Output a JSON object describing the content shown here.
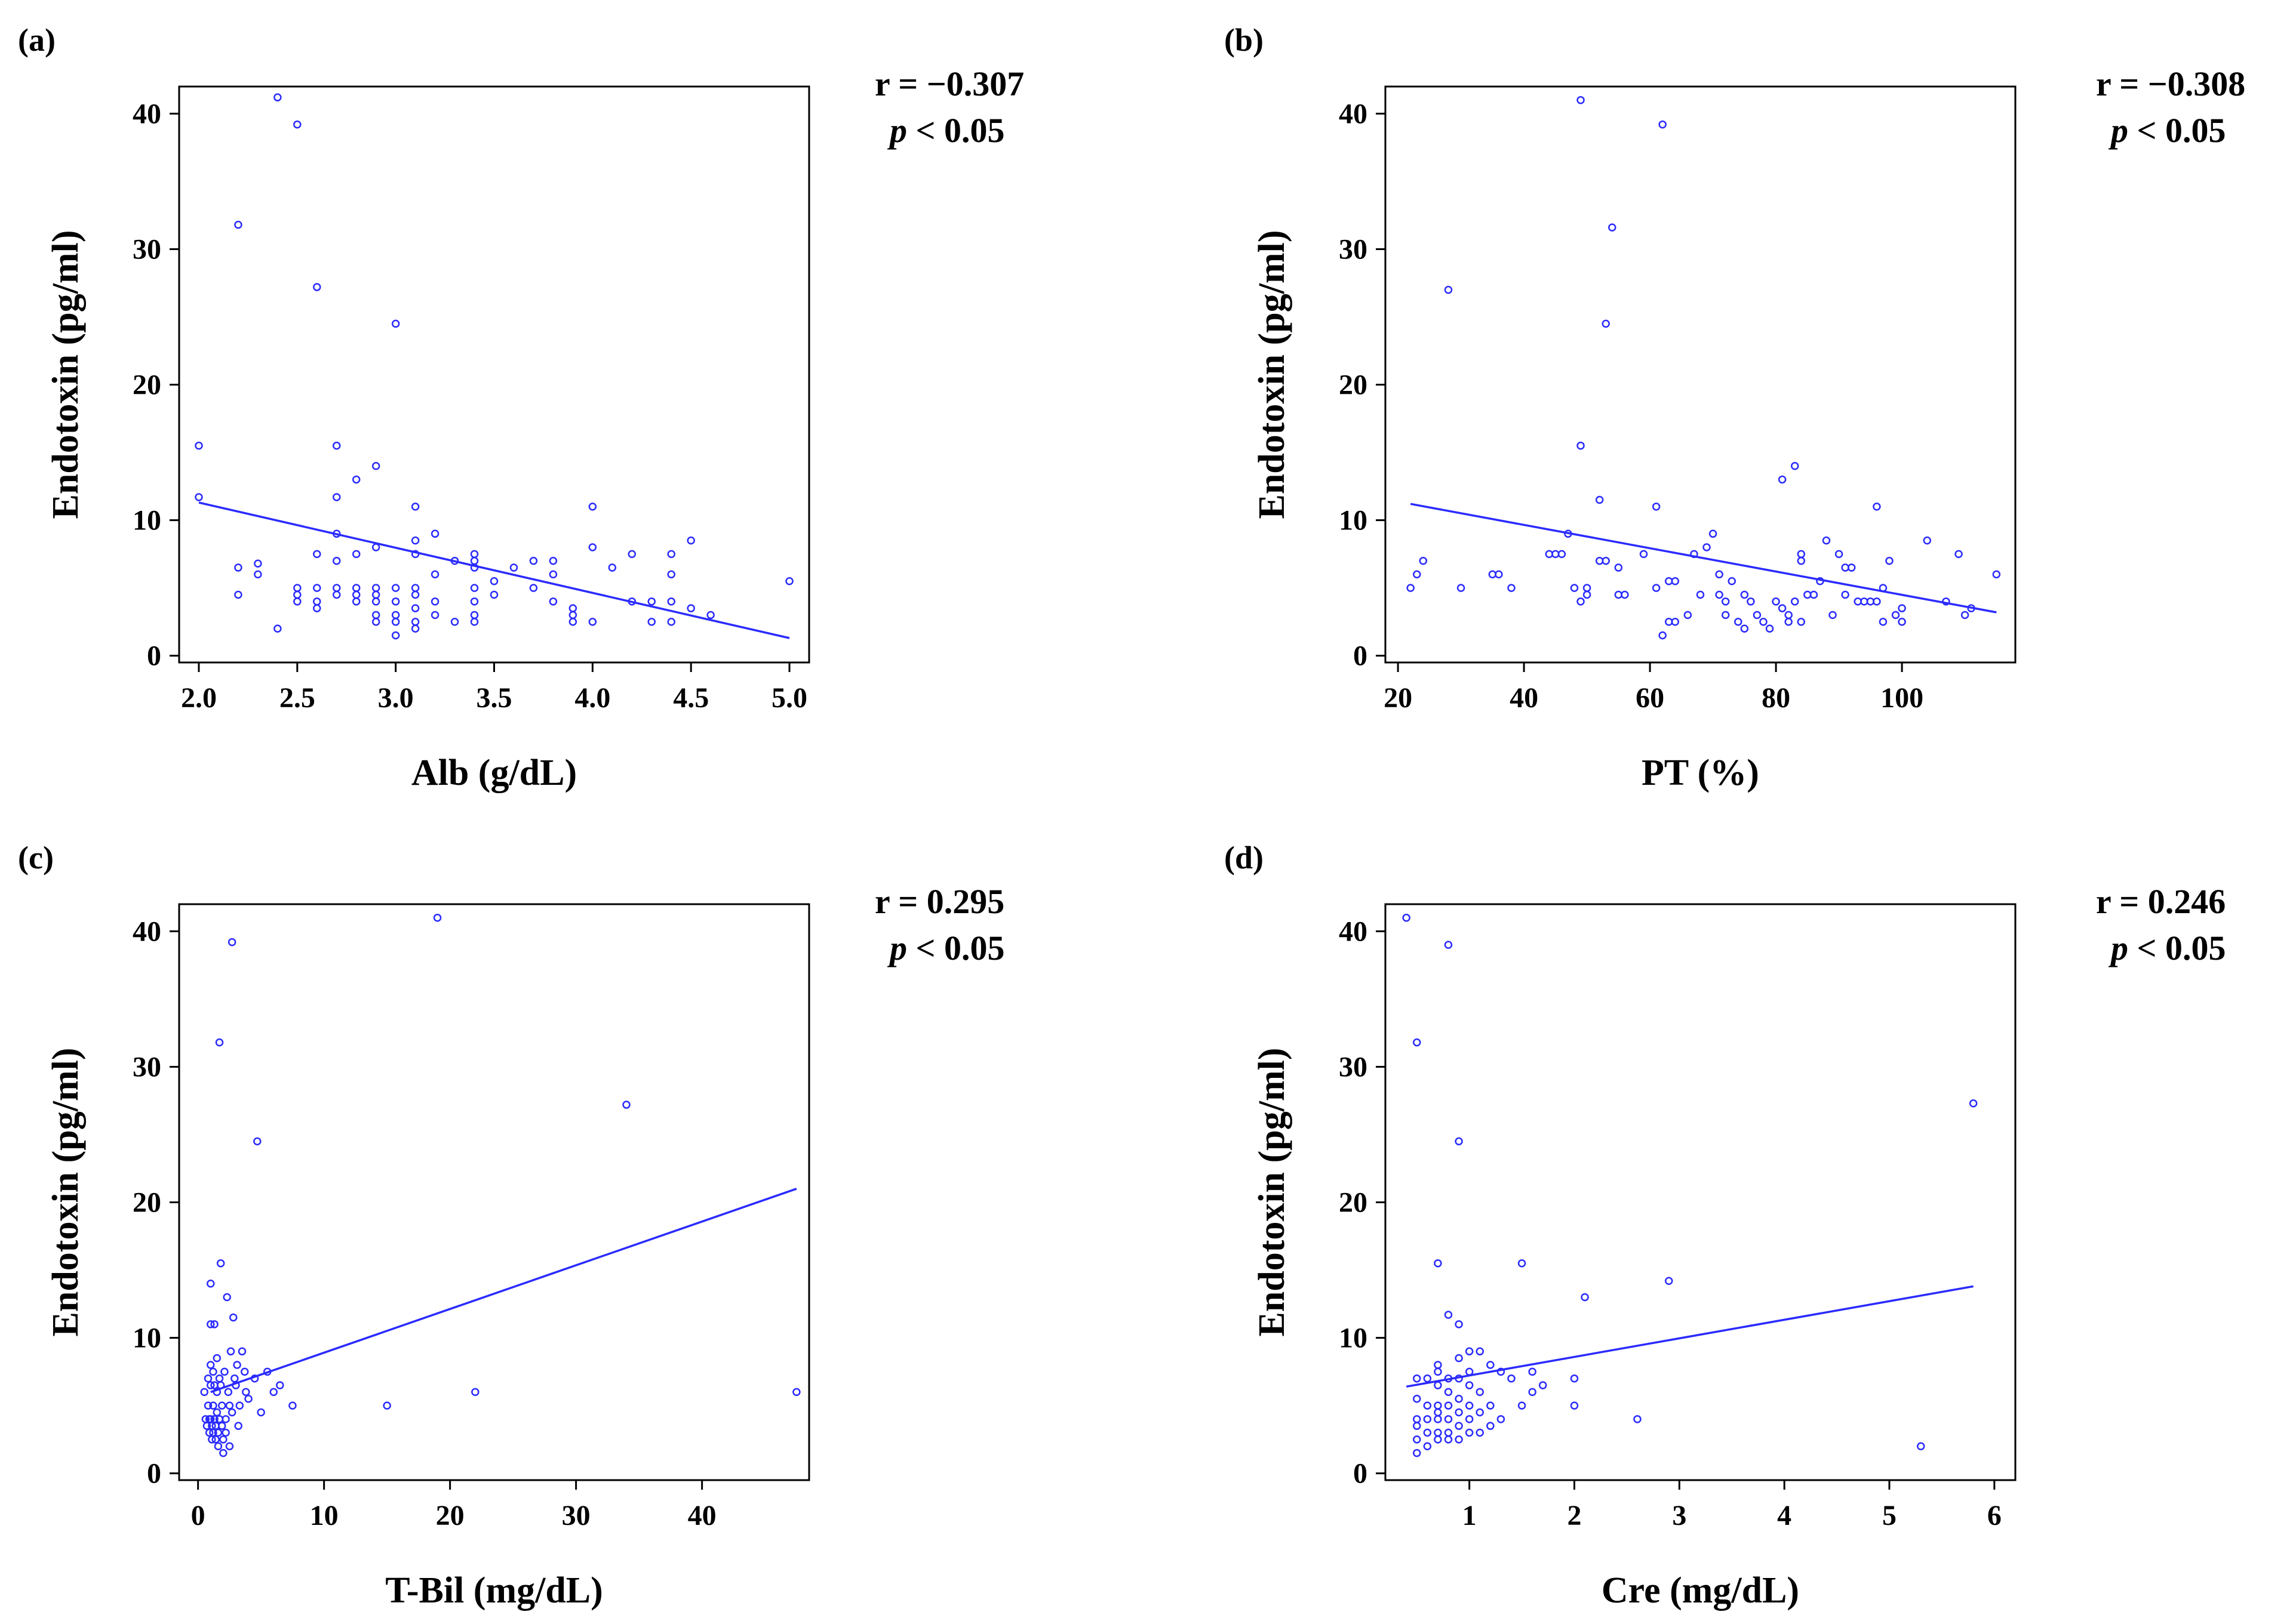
{
  "figure": {
    "accent_color": "#2b2bff"
  },
  "chart_data": [
    {
      "type": "scatter",
      "panel_label": "(a)",
      "xlabel": "Alb (g/dL)",
      "ylabel": "Endotoxin (pg/ml)",
      "xlim": [
        1.9,
        5.1
      ],
      "ylim": [
        -0.5,
        42
      ],
      "xticks": [
        2.0,
        2.5,
        3.0,
        3.5,
        4.0,
        4.5,
        5.0
      ],
      "xtick_labels": [
        "2.0",
        "2.5",
        "3.0",
        "3.5",
        "4.0",
        "4.5",
        "5.0"
      ],
      "yticks": [
        0,
        10,
        20,
        30,
        40
      ],
      "ytick_labels": [
        "0",
        "10",
        "20",
        "30",
        "40"
      ],
      "r_text": "r = −0.307",
      "p_italic": "p",
      "p_rest": " < 0.05",
      "points": [
        [
          2.0,
          15.5
        ],
        [
          2.0,
          11.7
        ],
        [
          2.2,
          31.8
        ],
        [
          2.2,
          6.5
        ],
        [
          2.2,
          4.5
        ],
        [
          2.3,
          6.8
        ],
        [
          2.3,
          6.0
        ],
        [
          2.4,
          41.2
        ],
        [
          2.4,
          2.0
        ],
        [
          2.5,
          39.2
        ],
        [
          2.5,
          5.0
        ],
        [
          2.5,
          4.5
        ],
        [
          2.5,
          4.0
        ],
        [
          2.6,
          27.2
        ],
        [
          2.6,
          7.5
        ],
        [
          2.6,
          5.0
        ],
        [
          2.6,
          4.0
        ],
        [
          2.6,
          3.5
        ],
        [
          2.7,
          15.5
        ],
        [
          2.7,
          11.7
        ],
        [
          2.7,
          9.0
        ],
        [
          2.7,
          7.0
        ],
        [
          2.7,
          5.0
        ],
        [
          2.7,
          4.5
        ],
        [
          2.8,
          13.0
        ],
        [
          2.8,
          7.5
        ],
        [
          2.8,
          5.0
        ],
        [
          2.8,
          4.5
        ],
        [
          2.8,
          4.0
        ],
        [
          2.9,
          14.0
        ],
        [
          2.9,
          8.0
        ],
        [
          2.9,
          5.0
        ],
        [
          2.9,
          4.5
        ],
        [
          2.9,
          4.0
        ],
        [
          2.9,
          3.0
        ],
        [
          2.9,
          2.5
        ],
        [
          3.0,
          24.5
        ],
        [
          3.0,
          5.0
        ],
        [
          3.0,
          4.0
        ],
        [
          3.0,
          3.0
        ],
        [
          3.0,
          2.5
        ],
        [
          3.0,
          1.5
        ],
        [
          3.1,
          11.0
        ],
        [
          3.1,
          8.5
        ],
        [
          3.1,
          7.5
        ],
        [
          3.1,
          5.0
        ],
        [
          3.1,
          4.5
        ],
        [
          3.1,
          3.5
        ],
        [
          3.1,
          2.5
        ],
        [
          3.1,
          2.0
        ],
        [
          3.2,
          9.0
        ],
        [
          3.2,
          6.0
        ],
        [
          3.2,
          4.0
        ],
        [
          3.2,
          3.0
        ],
        [
          3.3,
          7.0
        ],
        [
          3.3,
          2.5
        ],
        [
          3.4,
          7.5
        ],
        [
          3.4,
          7.0
        ],
        [
          3.4,
          6.5
        ],
        [
          3.4,
          5.0
        ],
        [
          3.4,
          4.0
        ],
        [
          3.4,
          3.0
        ],
        [
          3.4,
          2.5
        ],
        [
          3.5,
          5.5
        ],
        [
          3.5,
          4.5
        ],
        [
          3.6,
          6.5
        ],
        [
          3.7,
          7.0
        ],
        [
          3.7,
          5.0
        ],
        [
          3.8,
          7.0
        ],
        [
          3.8,
          6.0
        ],
        [
          3.8,
          4.0
        ],
        [
          3.9,
          3.5
        ],
        [
          3.9,
          3.0
        ],
        [
          3.9,
          2.5
        ],
        [
          4.0,
          11.0
        ],
        [
          4.0,
          8.0
        ],
        [
          4.0,
          2.5
        ],
        [
          4.1,
          6.5
        ],
        [
          4.2,
          7.5
        ],
        [
          4.2,
          4.0
        ],
        [
          4.3,
          4.0
        ],
        [
          4.3,
          2.5
        ],
        [
          4.4,
          7.5
        ],
        [
          4.4,
          6.0
        ],
        [
          4.4,
          4.0
        ],
        [
          4.4,
          2.5
        ],
        [
          4.5,
          8.5
        ],
        [
          4.5,
          3.5
        ],
        [
          4.6,
          3.0
        ],
        [
          5.0,
          5.5
        ]
      ],
      "fit_line": [
        [
          2.0,
          11.3
        ],
        [
          5.0,
          1.3
        ]
      ]
    },
    {
      "type": "scatter",
      "panel_label": "(b)",
      "xlabel": "PT (%)",
      "ylabel": "Endotoxin (pg/ml)",
      "xlim": [
        18,
        118
      ],
      "ylim": [
        -0.5,
        42
      ],
      "xticks": [
        20,
        40,
        60,
        80,
        100
      ],
      "xtick_labels": [
        "20",
        "40",
        "60",
        "80",
        "100"
      ],
      "yticks": [
        0,
        10,
        20,
        30,
        40
      ],
      "ytick_labels": [
        "0",
        "10",
        "20",
        "30",
        "40"
      ],
      "r_text": "r = −0.308",
      "p_italic": "p",
      "p_rest": " < 0.05",
      "points": [
        [
          22,
          5.0
        ],
        [
          23,
          6.0
        ],
        [
          24,
          7.0
        ],
        [
          28,
          27.0
        ],
        [
          30,
          5.0
        ],
        [
          35,
          6.0
        ],
        [
          36,
          6.0
        ],
        [
          38,
          5.0
        ],
        [
          44,
          7.5
        ],
        [
          45,
          7.5
        ],
        [
          46,
          7.5
        ],
        [
          47,
          9.0
        ],
        [
          48,
          5.0
        ],
        [
          49,
          41.0
        ],
        [
          49,
          15.5
        ],
        [
          49,
          4.0
        ],
        [
          50,
          5.0
        ],
        [
          50,
          4.5
        ],
        [
          52,
          11.5
        ],
        [
          52,
          7.0
        ],
        [
          53,
          7.0
        ],
        [
          53,
          24.5
        ],
        [
          54,
          31.6
        ],
        [
          55,
          6.5
        ],
        [
          55,
          4.5
        ],
        [
          56,
          4.5
        ],
        [
          59,
          7.5
        ],
        [
          61,
          11.0
        ],
        [
          61,
          5.0
        ],
        [
          62,
          39.2
        ],
        [
          62,
          1.5
        ],
        [
          63,
          2.5
        ],
        [
          63,
          5.5
        ],
        [
          64,
          2.5
        ],
        [
          64,
          5.5
        ],
        [
          66,
          3.0
        ],
        [
          67,
          7.5
        ],
        [
          68,
          4.5
        ],
        [
          69,
          8.0
        ],
        [
          70,
          9.0
        ],
        [
          71,
          4.5
        ],
        [
          71,
          6.0
        ],
        [
          72,
          4.0
        ],
        [
          72,
          3.0
        ],
        [
          73,
          5.5
        ],
        [
          74,
          2.5
        ],
        [
          75,
          4.5
        ],
        [
          75,
          2.0
        ],
        [
          76,
          4.0
        ],
        [
          77,
          3.0
        ],
        [
          78,
          2.5
        ],
        [
          79,
          2.0
        ],
        [
          80,
          4.0
        ],
        [
          81,
          13.0
        ],
        [
          81,
          3.5
        ],
        [
          82,
          3.0
        ],
        [
          82,
          2.5
        ],
        [
          83,
          14.0
        ],
        [
          83,
          4.0
        ],
        [
          84,
          7.5
        ],
        [
          84,
          7.0
        ],
        [
          84,
          2.5
        ],
        [
          85,
          4.5
        ],
        [
          86,
          4.5
        ],
        [
          87,
          5.5
        ],
        [
          88,
          8.5
        ],
        [
          89,
          3.0
        ],
        [
          90,
          7.5
        ],
        [
          91,
          6.5
        ],
        [
          91,
          4.5
        ],
        [
          92,
          6.5
        ],
        [
          93,
          4.0
        ],
        [
          94,
          4.0
        ],
        [
          95,
          4.0
        ],
        [
          96,
          11.0
        ],
        [
          96,
          4.0
        ],
        [
          97,
          5.0
        ],
        [
          97,
          2.5
        ],
        [
          98,
          7.0
        ],
        [
          99,
          3.0
        ],
        [
          100,
          3.5
        ],
        [
          100,
          2.5
        ],
        [
          104,
          8.5
        ],
        [
          107,
          4.0
        ],
        [
          109,
          7.5
        ],
        [
          110,
          3.0
        ],
        [
          111,
          3.5
        ],
        [
          115,
          6.0
        ]
      ],
      "fit_line": [
        [
          22,
          11.2
        ],
        [
          115,
          3.2
        ]
      ]
    },
    {
      "type": "scatter",
      "panel_label": "(c)",
      "xlabel": "T-Bil (mg/dL)",
      "ylabel": "Endotoxin (pg/ml)",
      "xlim": [
        -1.5,
        48.5
      ],
      "ylim": [
        -0.5,
        42
      ],
      "xticks": [
        0,
        10,
        20,
        30,
        40
      ],
      "xtick_labels": [
        "0",
        "10",
        "20",
        "30",
        "40"
      ],
      "yticks": [
        0,
        10,
        20,
        30,
        40
      ],
      "ytick_labels": [
        "0",
        "10",
        "20",
        "30",
        "40"
      ],
      "r_text": "r = 0.295",
      "p_italic": "p",
      "p_rest": " < 0.05",
      "points": [
        [
          0.5,
          6.0
        ],
        [
          0.6,
          4.0
        ],
        [
          0.7,
          3.5
        ],
        [
          0.8,
          7.0
        ],
        [
          0.8,
          5.0
        ],
        [
          0.9,
          4.0
        ],
        [
          0.9,
          3.0
        ],
        [
          1.0,
          14.0
        ],
        [
          1.0,
          11.0
        ],
        [
          1.0,
          8.0
        ],
        [
          1.0,
          6.5
        ],
        [
          1.0,
          4.0
        ],
        [
          1.1,
          3.5
        ],
        [
          1.1,
          2.5
        ],
        [
          1.2,
          7.5
        ],
        [
          1.2,
          5.0
        ],
        [
          1.2,
          3.0
        ],
        [
          1.3,
          11.0
        ],
        [
          1.3,
          6.5
        ],
        [
          1.3,
          4.0
        ],
        [
          1.4,
          3.5
        ],
        [
          1.4,
          2.5
        ],
        [
          1.5,
          8.5
        ],
        [
          1.5,
          6.0
        ],
        [
          1.5,
          4.5
        ],
        [
          1.6,
          3.0
        ],
        [
          1.6,
          2.0
        ],
        [
          1.7,
          31.8
        ],
        [
          1.7,
          7.0
        ],
        [
          1.7,
          4.0
        ],
        [
          1.8,
          15.5
        ],
        [
          1.8,
          6.5
        ],
        [
          1.9,
          5.0
        ],
        [
          1.9,
          3.5
        ],
        [
          2.0,
          2.5
        ],
        [
          2.0,
          1.5
        ],
        [
          2.1,
          7.5
        ],
        [
          2.2,
          4.0
        ],
        [
          2.2,
          3.0
        ],
        [
          2.3,
          13.0
        ],
        [
          2.4,
          6.0
        ],
        [
          2.5,
          5.0
        ],
        [
          2.5,
          2.0
        ],
        [
          2.6,
          9.0
        ],
        [
          2.7,
          39.2
        ],
        [
          2.7,
          4.5
        ],
        [
          2.8,
          11.5
        ],
        [
          2.9,
          7.0
        ],
        [
          3.0,
          6.5
        ],
        [
          3.1,
          8.0
        ],
        [
          3.2,
          3.5
        ],
        [
          3.3,
          5.0
        ],
        [
          3.5,
          9.0
        ],
        [
          3.7,
          7.5
        ],
        [
          3.8,
          6.0
        ],
        [
          4.0,
          5.5
        ],
        [
          4.5,
          7.0
        ],
        [
          4.7,
          24.5
        ],
        [
          5.0,
          4.5
        ],
        [
          5.5,
          7.5
        ],
        [
          6.0,
          6.0
        ],
        [
          6.5,
          6.5
        ],
        [
          7.5,
          5.0
        ],
        [
          15.0,
          5.0
        ],
        [
          19.0,
          41.0
        ],
        [
          22.0,
          6.0
        ],
        [
          34.0,
          27.2
        ],
        [
          47.5,
          6.0
        ]
      ],
      "fit_line": [
        [
          1.0,
          6.0
        ],
        [
          47.5,
          21.0
        ]
      ]
    },
    {
      "type": "scatter",
      "panel_label": "(d)",
      "xlabel": "Cre (mg/dL)",
      "ylabel": "Endotoxin (pg/ml)",
      "xlim": [
        0.2,
        6.2
      ],
      "ylim": [
        -0.5,
        42
      ],
      "xticks": [
        1,
        2,
        3,
        4,
        5,
        6
      ],
      "xtick_labels": [
        "1",
        "2",
        "3",
        "4",
        "5",
        "6"
      ],
      "yticks": [
        0,
        10,
        20,
        30,
        40
      ],
      "ytick_labels": [
        "0",
        "10",
        "20",
        "30",
        "40"
      ],
      "r_text": "r = 0.246",
      "p_italic": "p",
      "p_rest": " < 0.05",
      "points": [
        [
          0.4,
          41.0
        ],
        [
          0.5,
          31.8
        ],
        [
          0.5,
          7.0
        ],
        [
          0.5,
          5.5
        ],
        [
          0.5,
          4.0
        ],
        [
          0.5,
          3.5
        ],
        [
          0.5,
          2.5
        ],
        [
          0.5,
          1.5
        ],
        [
          0.6,
          7.0
        ],
        [
          0.6,
          5.0
        ],
        [
          0.6,
          4.0
        ],
        [
          0.6,
          3.0
        ],
        [
          0.6,
          2.0
        ],
        [
          0.7,
          15.5
        ],
        [
          0.7,
          8.0
        ],
        [
          0.7,
          7.5
        ],
        [
          0.7,
          6.5
        ],
        [
          0.7,
          5.0
        ],
        [
          0.7,
          4.5
        ],
        [
          0.7,
          4.0
        ],
        [
          0.7,
          3.0
        ],
        [
          0.7,
          2.5
        ],
        [
          0.8,
          39.0
        ],
        [
          0.8,
          11.7
        ],
        [
          0.8,
          7.0
        ],
        [
          0.8,
          6.0
        ],
        [
          0.8,
          5.0
        ],
        [
          0.8,
          4.0
        ],
        [
          0.8,
          3.0
        ],
        [
          0.8,
          2.5
        ],
        [
          0.9,
          24.5
        ],
        [
          0.9,
          11.0
        ],
        [
          0.9,
          8.5
        ],
        [
          0.9,
          7.0
        ],
        [
          0.9,
          5.5
        ],
        [
          0.9,
          4.5
        ],
        [
          0.9,
          3.5
        ],
        [
          0.9,
          2.5
        ],
        [
          1.0,
          9.0
        ],
        [
          1.0,
          7.5
        ],
        [
          1.0,
          6.5
        ],
        [
          1.0,
          5.0
        ],
        [
          1.0,
          4.0
        ],
        [
          1.0,
          3.0
        ],
        [
          1.1,
          9.0
        ],
        [
          1.1,
          6.0
        ],
        [
          1.1,
          4.5
        ],
        [
          1.1,
          3.0
        ],
        [
          1.2,
          8.0
        ],
        [
          1.2,
          5.0
        ],
        [
          1.2,
          3.5
        ],
        [
          1.3,
          7.5
        ],
        [
          1.3,
          4.0
        ],
        [
          1.4,
          7.0
        ],
        [
          1.5,
          15.5
        ],
        [
          1.5,
          5.0
        ],
        [
          1.6,
          7.5
        ],
        [
          1.6,
          6.0
        ],
        [
          1.7,
          6.5
        ],
        [
          2.0,
          7.0
        ],
        [
          2.0,
          5.0
        ],
        [
          2.1,
          13.0
        ],
        [
          2.6,
          4.0
        ],
        [
          2.9,
          14.2
        ],
        [
          5.3,
          2.0
        ],
        [
          5.8,
          27.3
        ]
      ],
      "fit_line": [
        [
          0.4,
          6.4
        ],
        [
          5.8,
          13.8
        ]
      ]
    }
  ]
}
